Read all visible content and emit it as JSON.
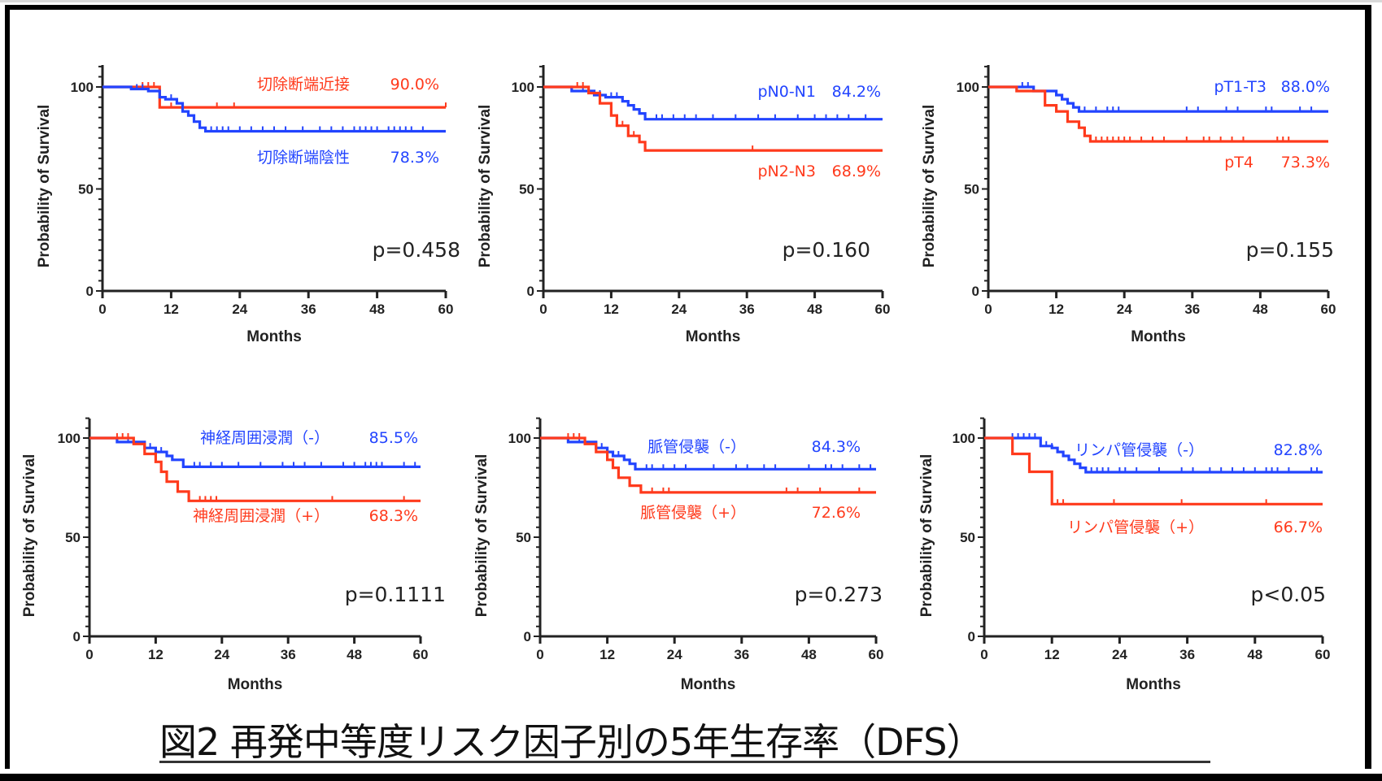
{
  "figure_title": "図2 再発中等度リスク因子別の5年生存率（DFS）",
  "colors": {
    "red": "#ff3a1c",
    "blue": "#2244ff",
    "axis": "#222222"
  },
  "chart_data": [
    {
      "type": "line",
      "subtype": "kaplan-meier",
      "xlabel": "Months",
      "ylabel": "Probability of Survival",
      "xlim": [
        0,
        60
      ],
      "ylim": [
        0,
        100
      ],
      "xticks": [
        "0",
        "12",
        "24",
        "36",
        "48",
        "60"
      ],
      "yticks": [
        "0",
        "50",
        "100"
      ],
      "p_value": "p=0.458",
      "series": [
        {
          "name": "切除断端近接",
          "rate_label": "90.0%",
          "color": "red",
          "steps": [
            [
              0,
              100
            ],
            [
              10,
              100
            ],
            [
              10,
              90
            ],
            [
              60,
              90
            ]
          ],
          "censor": [
            7,
            8,
            9,
            12,
            14,
            20,
            23,
            60
          ]
        },
        {
          "name": "切除断端陰性",
          "rate_label": "78.3%",
          "color": "blue",
          "steps": [
            [
              0,
              100
            ],
            [
              5,
              100
            ],
            [
              5,
              99
            ],
            [
              8,
              99
            ],
            [
              8,
              98
            ],
            [
              10,
              98
            ],
            [
              10,
              95
            ],
            [
              11,
              95
            ],
            [
              11,
              94
            ],
            [
              13,
              94
            ],
            [
              13,
              92
            ],
            [
              14,
              92
            ],
            [
              14,
              88
            ],
            [
              15,
              88
            ],
            [
              15,
              86
            ],
            [
              16,
              86
            ],
            [
              16,
              83
            ],
            [
              17,
              83
            ],
            [
              17,
              80
            ],
            [
              18,
              80
            ],
            [
              18,
              78.3
            ],
            [
              60,
              78.3
            ]
          ],
          "censor": [
            6,
            7,
            12,
            19,
            20,
            21,
            22,
            24,
            26,
            28,
            30,
            32,
            35,
            38,
            40,
            42,
            44,
            45,
            46,
            47,
            48,
            50,
            51,
            52,
            53,
            54,
            56
          ]
        }
      ]
    },
    {
      "type": "line",
      "subtype": "kaplan-meier",
      "xlabel": "Months",
      "ylabel": "Probability of Survival",
      "xlim": [
        0,
        60
      ],
      "ylim": [
        0,
        100
      ],
      "xticks": [
        "0",
        "12",
        "24",
        "36",
        "48",
        "60"
      ],
      "yticks": [
        "0",
        "50",
        "100"
      ],
      "p_value": "p=0.160",
      "series": [
        {
          "name": "pN0-N1",
          "rate_label": "84.2%",
          "color": "blue",
          "steps": [
            [
              0,
              100
            ],
            [
              5,
              100
            ],
            [
              5,
              98
            ],
            [
              9,
              98
            ],
            [
              9,
              96
            ],
            [
              11,
              96
            ],
            [
              11,
              95
            ],
            [
              14,
              95
            ],
            [
              14,
              93
            ],
            [
              15,
              93
            ],
            [
              15,
              91
            ],
            [
              16,
              91
            ],
            [
              16,
              89
            ],
            [
              17,
              89
            ],
            [
              17,
              87
            ],
            [
              18,
              87
            ],
            [
              18,
              84.2
            ],
            [
              60,
              84.2
            ]
          ],
          "censor": [
            7,
            10,
            12,
            13,
            14,
            16,
            20,
            21,
            23,
            25,
            27,
            30,
            34,
            38,
            41,
            45,
            48,
            50,
            52,
            54,
            57
          ]
        },
        {
          "name": "pN2-N3",
          "rate_label": "68.9%",
          "color": "red",
          "steps": [
            [
              0,
              100
            ],
            [
              8,
              100
            ],
            [
              8,
              97
            ],
            [
              10,
              97
            ],
            [
              10,
              92
            ],
            [
              12,
              92
            ],
            [
              12,
              86
            ],
            [
              13,
              86
            ],
            [
              13,
              81
            ],
            [
              15,
              81
            ],
            [
              15,
              76
            ],
            [
              17,
              76
            ],
            [
              17,
              73
            ],
            [
              18,
              73
            ],
            [
              18,
              68.9
            ],
            [
              60,
              68.9
            ]
          ],
          "censor": [
            6,
            7,
            14,
            16,
            37
          ]
        }
      ]
    },
    {
      "type": "line",
      "subtype": "kaplan-meier",
      "xlabel": "Months",
      "ylabel": "Probability of Survival",
      "xlim": [
        0,
        60
      ],
      "ylim": [
        0,
        100
      ],
      "xticks": [
        "0",
        "12",
        "24",
        "36",
        "48",
        "60"
      ],
      "yticks": [
        "0",
        "50",
        "100"
      ],
      "p_value": "p=0.155",
      "series": [
        {
          "name": "pT1-T3",
          "rate_label": "88.0%",
          "color": "blue",
          "steps": [
            [
              0,
              100
            ],
            [
              8,
              100
            ],
            [
              8,
              98
            ],
            [
              12,
              98
            ],
            [
              12,
              96
            ],
            [
              13,
              96
            ],
            [
              13,
              94
            ],
            [
              14,
              94
            ],
            [
              14,
              92
            ],
            [
              15,
              92
            ],
            [
              15,
              90
            ],
            [
              16,
              90
            ],
            [
              16,
              88
            ],
            [
              60,
              88
            ]
          ],
          "censor": [
            6,
            7,
            8,
            14,
            16,
            17,
            19,
            21,
            22,
            23,
            35,
            37,
            42,
            44,
            49,
            50,
            55,
            57
          ]
        },
        {
          "name": "pT4",
          "rate_label": "73.3%",
          "color": "red",
          "steps": [
            [
              0,
              100
            ],
            [
              5,
              100
            ],
            [
              5,
              98
            ],
            [
              10,
              98
            ],
            [
              10,
              91
            ],
            [
              12,
              91
            ],
            [
              12,
              88
            ],
            [
              14,
              88
            ],
            [
              14,
              83
            ],
            [
              16,
              83
            ],
            [
              16,
              80
            ],
            [
              17,
              80
            ],
            [
              17,
              76
            ],
            [
              18,
              76
            ],
            [
              18,
              73.3
            ],
            [
              60,
              73.3
            ]
          ],
          "censor": [
            19,
            20,
            21,
            22,
            23,
            24,
            25,
            27,
            29,
            31,
            35,
            38,
            39,
            41,
            43,
            45,
            51,
            52,
            53
          ]
        }
      ]
    },
    {
      "type": "line",
      "subtype": "kaplan-meier",
      "xlabel": "Months",
      "ylabel": "Probability of Survival",
      "xlim": [
        0,
        60
      ],
      "ylim": [
        0,
        100
      ],
      "xticks": [
        "0",
        "12",
        "24",
        "36",
        "48",
        "60"
      ],
      "yticks": [
        "0",
        "50",
        "100"
      ],
      "p_value": "p=0.1111",
      "series": [
        {
          "name": "神経周囲浸潤（-）",
          "rate_label": "85.5%",
          "color": "blue",
          "steps": [
            [
              0,
              100
            ],
            [
              5,
              100
            ],
            [
              5,
              98
            ],
            [
              10,
              98
            ],
            [
              10,
              95
            ],
            [
              12,
              95
            ],
            [
              12,
              93
            ],
            [
              14,
              93
            ],
            [
              14,
              91
            ],
            [
              15,
              91
            ],
            [
              15,
              89
            ],
            [
              17,
              89
            ],
            [
              17,
              85.5
            ],
            [
              60,
              85.5
            ]
          ],
          "censor": [
            7,
            8,
            11,
            13,
            14,
            19,
            20,
            22,
            24,
            27,
            31,
            35,
            37,
            39,
            42,
            46,
            48,
            50,
            51,
            52,
            53,
            57,
            59
          ]
        },
        {
          "name": "神経周囲浸潤（+）",
          "rate_label": "68.3%",
          "color": "red",
          "steps": [
            [
              0,
              100
            ],
            [
              8,
              100
            ],
            [
              8,
              97
            ],
            [
              10,
              97
            ],
            [
              10,
              92
            ],
            [
              12,
              92
            ],
            [
              12,
              88
            ],
            [
              13,
              88
            ],
            [
              13,
              83
            ],
            [
              14,
              83
            ],
            [
              14,
              78
            ],
            [
              16,
              78
            ],
            [
              16,
              73
            ],
            [
              18,
              73
            ],
            [
              18,
              68.3
            ],
            [
              60,
              68.3
            ]
          ],
          "censor": [
            5,
            6,
            7,
            20,
            21,
            22,
            23,
            44,
            57
          ]
        }
      ]
    },
    {
      "type": "line",
      "subtype": "kaplan-meier",
      "xlabel": "Months",
      "ylabel": "Probability of Survival",
      "xlim": [
        0,
        60
      ],
      "ylim": [
        0,
        100
      ],
      "xticks": [
        "0",
        "12",
        "24",
        "36",
        "48",
        "60"
      ],
      "yticks": [
        "0",
        "50",
        "100"
      ],
      "p_value": "p=0.273",
      "series": [
        {
          "name": "脈管侵襲（-）",
          "rate_label": "84.3%",
          "color": "blue",
          "steps": [
            [
              0,
              100
            ],
            [
              5,
              100
            ],
            [
              5,
              98
            ],
            [
              10,
              98
            ],
            [
              10,
              95
            ],
            [
              12,
              95
            ],
            [
              12,
              93
            ],
            [
              13,
              93
            ],
            [
              13,
              91
            ],
            [
              15,
              91
            ],
            [
              15,
              89
            ],
            [
              16,
              89
            ],
            [
              16,
              87
            ],
            [
              17,
              87
            ],
            [
              17,
              84.3
            ],
            [
              60,
              84.3
            ]
          ],
          "censor": [
            7,
            8,
            11,
            12,
            14,
            19,
            20,
            22,
            24,
            26,
            31,
            35,
            37,
            40,
            42,
            48,
            51,
            52,
            54,
            57,
            59
          ]
        },
        {
          "name": "脈管侵襲（+）",
          "rate_label": "72.6%",
          "color": "red",
          "steps": [
            [
              0,
              100
            ],
            [
              8,
              100
            ],
            [
              8,
              97
            ],
            [
              10,
              97
            ],
            [
              10,
              93
            ],
            [
              12,
              93
            ],
            [
              12,
              89
            ],
            [
              13,
              89
            ],
            [
              13,
              85
            ],
            [
              14,
              85
            ],
            [
              14,
              80
            ],
            [
              16,
              80
            ],
            [
              16,
              76
            ],
            [
              18,
              76
            ],
            [
              18,
              72.6
            ],
            [
              60,
              72.6
            ]
          ],
          "censor": [
            5,
            6,
            7,
            20,
            22,
            23,
            44,
            46,
            50,
            57
          ]
        }
      ]
    },
    {
      "type": "line",
      "subtype": "kaplan-meier",
      "xlabel": "Months",
      "ylabel": "Probability of Survival",
      "xlim": [
        0,
        60
      ],
      "ylim": [
        0,
        100
      ],
      "xticks": [
        "0",
        "12",
        "24",
        "36",
        "48",
        "60"
      ],
      "yticks": [
        "0",
        "50",
        "100"
      ],
      "p_value": "p<0.05",
      "series": [
        {
          "name": "リンパ管侵襲（-）",
          "rate_label": "82.8%",
          "color": "blue",
          "steps": [
            [
              0,
              100
            ],
            [
              10,
              100
            ],
            [
              10,
              96
            ],
            [
              12,
              96
            ],
            [
              12,
              95
            ],
            [
              13,
              95
            ],
            [
              13,
              93
            ],
            [
              14,
              93
            ],
            [
              14,
              91
            ],
            [
              15,
              91
            ],
            [
              15,
              89
            ],
            [
              16,
              89
            ],
            [
              16,
              87
            ],
            [
              17,
              87
            ],
            [
              17,
              85
            ],
            [
              18,
              85
            ],
            [
              18,
              82.8
            ],
            [
              60,
              82.8
            ]
          ],
          "censor": [
            5,
            6,
            7,
            8,
            9,
            11,
            12,
            19,
            20,
            21,
            22,
            24,
            25,
            27,
            31,
            35,
            37,
            40,
            42,
            44,
            46,
            48,
            50,
            51,
            52,
            54,
            58,
            59
          ]
        },
        {
          "name": "リンパ管侵襲（+）",
          "rate_label": "66.7%",
          "color": "red",
          "steps": [
            [
              0,
              100
            ],
            [
              5,
              100
            ],
            [
              5,
              92
            ],
            [
              8,
              92
            ],
            [
              8,
              83
            ],
            [
              12,
              83
            ],
            [
              12,
              66.7
            ],
            [
              60,
              66.7
            ]
          ],
          "censor": [
            13,
            14,
            23,
            35,
            50
          ]
        }
      ]
    }
  ]
}
